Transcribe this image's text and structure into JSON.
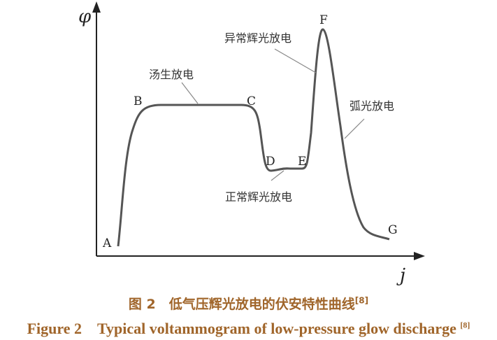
{
  "figure": {
    "y_axis_label": "φ",
    "x_axis_label": "j",
    "points": [
      "A",
      "B",
      "C",
      "D",
      "E",
      "F",
      "G"
    ],
    "regions": {
      "townsend": "汤生放电",
      "normal_glow": "正常辉光放电",
      "abnormal_glow": "异常辉光放电",
      "arc": "弧光放电"
    },
    "line_color": "#555555"
  },
  "caption": {
    "cn": "图 2　低气压辉光放电的伏安特性曲线",
    "cn_ref": "[8]",
    "en": "Figure 2　Typical voltammogram of low-pressure glow discharge ",
    "en_ref": "[8]",
    "color": "#a0652a"
  }
}
